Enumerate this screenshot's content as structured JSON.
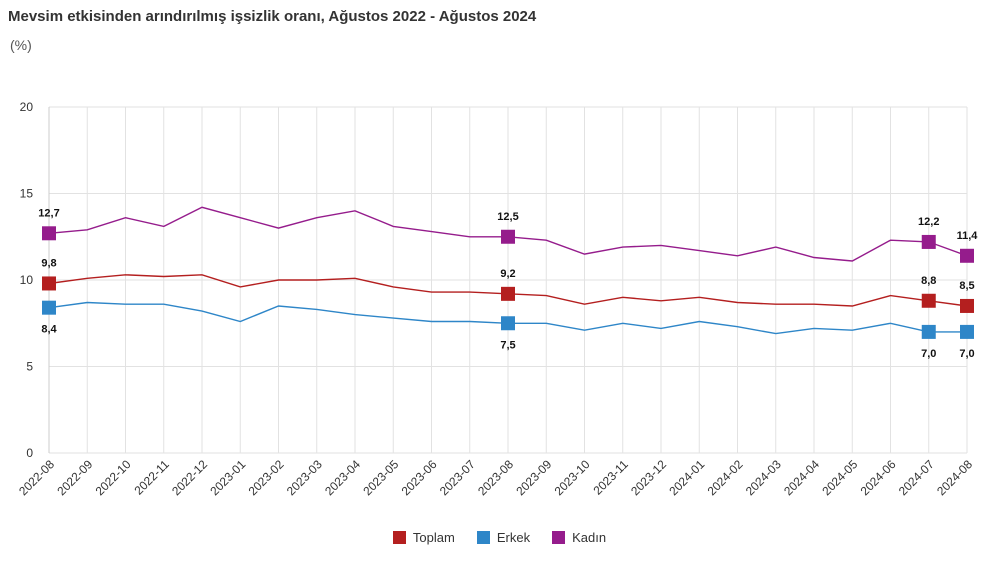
{
  "chart_data": {
    "type": "line",
    "title": "Mevsim etkisinden arındırılmış işsizlik oranı, Ağustos 2022 - Ağustos 2024",
    "subtitle": "(%)",
    "xlabel": "",
    "ylabel": "",
    "ylim": [
      0,
      20
    ],
    "yticks": [
      0,
      5,
      10,
      15,
      20
    ],
    "grid": true,
    "legend_position": "bottom-center",
    "categories": [
      "2022-08",
      "2022-09",
      "2022-10",
      "2022-11",
      "2022-12",
      "2023-01",
      "2023-02",
      "2023-03",
      "2023-04",
      "2023-05",
      "2023-06",
      "2023-07",
      "2023-08",
      "2023-09",
      "2023-10",
      "2023-11",
      "2023-12",
      "2024-01",
      "2024-02",
      "2024-03",
      "2024-04",
      "2024-05",
      "2024-06",
      "2024-07",
      "2024-08"
    ],
    "series": [
      {
        "name": "Toplam",
        "color": "#b41f1f",
        "values": [
          9.8,
          10.1,
          10.3,
          10.2,
          10.3,
          9.6,
          10.0,
          10.0,
          10.1,
          9.6,
          9.3,
          9.3,
          9.2,
          9.1,
          8.6,
          9.0,
          8.8,
          9.0,
          8.7,
          8.6,
          8.6,
          8.5,
          9.1,
          8.8,
          8.5
        ]
      },
      {
        "name": "Erkek",
        "color": "#2e86c8",
        "values": [
          8.4,
          8.7,
          8.6,
          8.6,
          8.2,
          7.6,
          8.5,
          8.3,
          8.0,
          7.8,
          7.6,
          7.6,
          7.5,
          7.5,
          7.1,
          7.5,
          7.2,
          7.6,
          7.3,
          6.9,
          7.2,
          7.1,
          7.5,
          7.0,
          7.0
        ]
      },
      {
        "name": "Kadın",
        "color": "#951c8c",
        "values": [
          12.7,
          12.9,
          13.6,
          13.1,
          14.2,
          13.6,
          13.0,
          13.6,
          14.0,
          13.1,
          12.8,
          12.5,
          12.5,
          12.3,
          11.5,
          11.9,
          12.0,
          11.7,
          11.4,
          11.9,
          11.3,
          11.1,
          12.3,
          12.2,
          11.4
        ]
      }
    ],
    "highlighted_points": [
      {
        "series": "Kadın",
        "category": "2022-08",
        "label": "12,7"
      },
      {
        "series": "Toplam",
        "category": "2022-08",
        "label": "9,8"
      },
      {
        "series": "Erkek",
        "category": "2022-08",
        "label": "8,4"
      },
      {
        "series": "Kadın",
        "category": "2023-08",
        "label": "12,5"
      },
      {
        "series": "Toplam",
        "category": "2023-08",
        "label": "9,2"
      },
      {
        "series": "Erkek",
        "category": "2023-08",
        "label": "7,5"
      },
      {
        "series": "Kadın",
        "category": "2024-07",
        "label": "12,2"
      },
      {
        "series": "Toplam",
        "category": "2024-07",
        "label": "8,8"
      },
      {
        "series": "Erkek",
        "category": "2024-07",
        "label": "7,0"
      },
      {
        "series": "Kadın",
        "category": "2024-08",
        "label": "11,4"
      },
      {
        "series": "Toplam",
        "category": "2024-08",
        "label": "8,5"
      },
      {
        "series": "Erkek",
        "category": "2024-08",
        "label": "7,0"
      }
    ]
  }
}
